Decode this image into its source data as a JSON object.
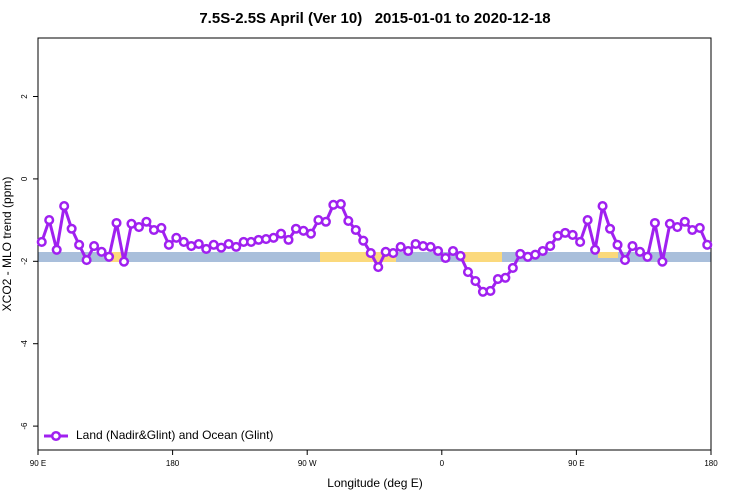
{
  "chart_data": {
    "type": "line",
    "title": "7.5S-2.5S April (Ver 10)   2015-01-01 to 2020-12-18",
    "x_label": "Longitude (deg E)",
    "y_label": "XCO2 - MLO trend (ppm)",
    "x": [
      92.5,
      97.5,
      102.5,
      107.5,
      112.5,
      117.5,
      122.5,
      127.5,
      132.5,
      137.5,
      142.5,
      147.5,
      152.5,
      157.5,
      162.5,
      167.5,
      172.5,
      177.5,
      182.5,
      187.5,
      192.5,
      197.5,
      202.5,
      207.5,
      212.5,
      217.5,
      222.5,
      227.5,
      232.5,
      237.5,
      242.5,
      247.5,
      252.5,
      257.5,
      262.5,
      267.5,
      272.5,
      277.5,
      282.5,
      287.5,
      292.5,
      297.5,
      302.5,
      307.5,
      312.5,
      317.5,
      322.5,
      327.5,
      332.5,
      337.5,
      342.5,
      347.5,
      352.5,
      357.5,
      362.5,
      367.5,
      372.5,
      377.5,
      382.5,
      387.5,
      392.5,
      397.5,
      402.5,
      407.5,
      412.5,
      417.5,
      422.5,
      427.5,
      432.5,
      437.5,
      442.5,
      447.5,
      452.5,
      457.5,
      462.5,
      467.5,
      472.5,
      477.5,
      482.5,
      487.5,
      492.5,
      497.5,
      502.5,
      507.5,
      512.5,
      517.5,
      522.5,
      527.5,
      532.5,
      537.5
    ],
    "series": [
      {
        "name": "Land (Nadir&Glint) and Ocean (Glint)",
        "color": "#a020f0",
        "values": [
          -1.53,
          -1.0,
          -1.72,
          -0.66,
          -1.21,
          -1.6,
          -1.97,
          -1.63,
          -1.77,
          -1.89,
          -1.07,
          -2.01,
          -1.09,
          -1.17,
          -1.04,
          -1.24,
          -1.19,
          -1.6,
          -1.43,
          -1.53,
          -1.63,
          -1.58,
          -1.7,
          -1.6,
          -1.67,
          -1.58,
          -1.65,
          -1.53,
          -1.53,
          -1.48,
          -1.46,
          -1.43,
          -1.33,
          -1.48,
          -1.21,
          -1.26,
          -1.33,
          -1.0,
          -1.04,
          -0.63,
          -0.61,
          -1.02,
          -1.24,
          -1.5,
          -1.8,
          -2.14,
          -1.77,
          -1.8,
          -1.65,
          -1.75,
          -1.58,
          -1.63,
          -1.65,
          -1.75,
          -1.92,
          -1.75,
          -1.87,
          -2.26,
          -2.48,
          -2.74,
          -2.72,
          -2.43,
          -2.4,
          -2.16,
          -1.82,
          -1.89,
          -1.84,
          -1.75,
          -1.63,
          -1.38,
          -1.31,
          -1.36,
          -1.53,
          -1.0,
          -1.72,
          -0.66,
          -1.21,
          -1.6,
          -1.97,
          -1.63,
          -1.77,
          -1.89,
          -1.07,
          -2.01,
          -1.09,
          -1.17,
          -1.04,
          -1.24,
          -1.19,
          -1.6
        ]
      }
    ],
    "xlim": [
      90,
      540
    ],
    "xticks": [
      {
        "value": 90,
        "label": "90 E"
      },
      {
        "value": 180,
        "label": "180"
      },
      {
        "value": 270,
        "label": "90 W"
      },
      {
        "value": 360,
        "label": "0"
      },
      {
        "value": 450,
        "label": "90 E"
      },
      {
        "value": 540,
        "label": "180"
      }
    ],
    "ylim": [
      -6.58,
      3.42
    ],
    "yticks": [
      -6,
      -4,
      -2,
      0,
      2
    ],
    "legend": "bottom-left"
  }
}
